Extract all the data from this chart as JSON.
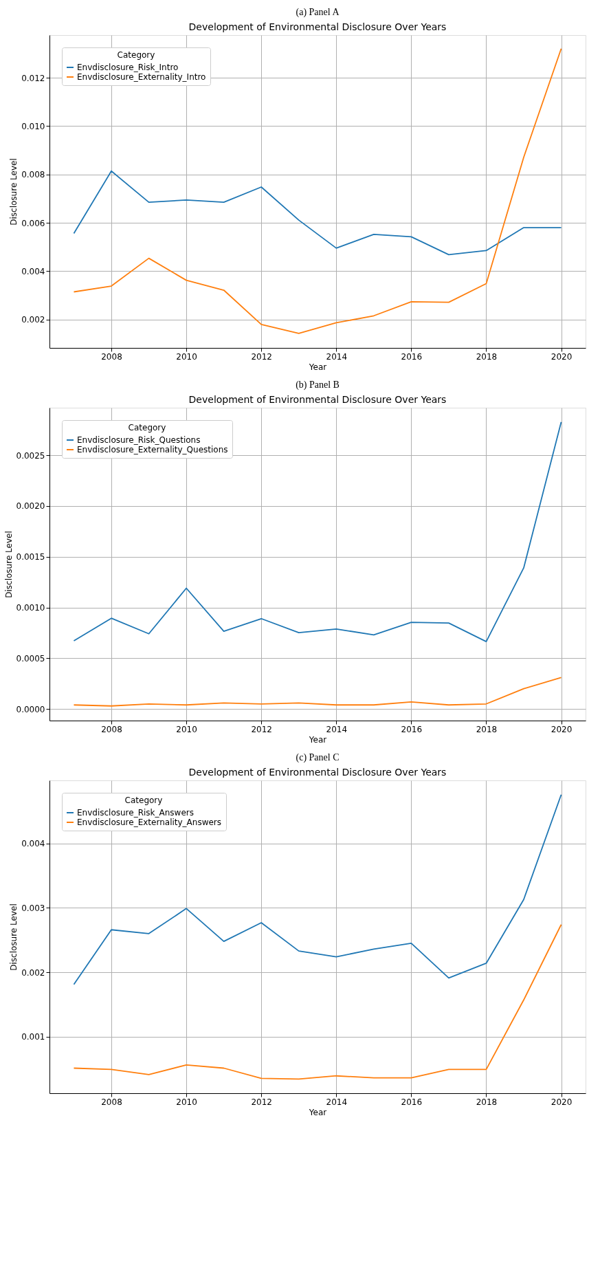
{
  "chart_data": [
    {
      "type": "line",
      "annotations": [
        "(a) Panel A"
      ],
      "title": "Development of Environmental Disclosure Over Years",
      "xlabel": "Year",
      "ylabel": "Disclosure Level",
      "legend_title": "Category",
      "legend": "top left",
      "grid": true,
      "x": [
        2007,
        2008,
        2009,
        2010,
        2011,
        2012,
        2013,
        2014,
        2015,
        2016,
        2017,
        2018,
        2019,
        2020
      ],
      "xlim": [
        2006.35,
        2020.65
      ],
      "xticks": [
        2008,
        2010,
        2012,
        2014,
        2016,
        2018,
        2020
      ],
      "ylim": [
        0.00082,
        0.01377
      ],
      "yticks": [
        0.002,
        0.004,
        0.006,
        0.008,
        {
          "value": 0.01,
          "label": "0.010"
        },
        0.012
      ],
      "series": [
        {
          "name": "Envdisclosure_Risk_Intro",
          "color": "#1f77b4",
          "values": [
            0.00556,
            0.00814,
            0.00685,
            0.00694,
            0.00685,
            0.00748,
            0.00611,
            0.00495,
            0.00552,
            0.00542,
            0.00468,
            0.00485,
            0.0058,
            0.0058
          ]
        },
        {
          "name": "Envdisclosure_Externality_Intro",
          "color": "#ff7f0e",
          "values": [
            0.00314,
            0.00338,
            0.00453,
            0.00362,
            0.00321,
            0.00179,
            0.00142,
            0.00186,
            0.00215,
            0.00273,
            0.00271,
            0.00348,
            0.00871,
            0.01321
          ]
        }
      ]
    },
    {
      "type": "line",
      "annotations": [
        "(b) Panel B"
      ],
      "title": "Development of Environmental Disclosure Over Years",
      "xlabel": "Year",
      "ylabel": "Disclosure Level",
      "legend_title": "Category",
      "legend": "top left",
      "grid": true,
      "x": [
        2007,
        2008,
        2009,
        2010,
        2011,
        2012,
        2013,
        2014,
        2015,
        2016,
        2017,
        2018,
        2019,
        2020
      ],
      "xlim": [
        2006.35,
        2020.65
      ],
      "xticks": [
        2008,
        2010,
        2012,
        2014,
        2016,
        2018,
        2020
      ],
      "ylim": [
        -0.000114,
        0.002968
      ],
      "yticks": [
        {
          "value": 0,
          "label": "0.0000"
        },
        0.0005,
        {
          "value": 0.001,
          "label": "0.0010"
        },
        0.0015,
        {
          "value": 0.002,
          "label": "0.0020"
        },
        0.0025
      ],
      "series": [
        {
          "name": "Envdisclosure_Risk_Questions",
          "color": "#1f77b4",
          "values": [
            0.000672,
            0.000894,
            0.000741,
            0.00119,
            0.000766,
            0.00089,
            0.000752,
            0.000788,
            0.00073,
            0.000854,
            0.000847,
            0.000664,
            0.00139,
            0.002828
          ]
        },
        {
          "name": "Envdisclosure_Externality_Questions",
          "color": "#ff7f0e",
          "values": [
            4e-05,
            3e-05,
            5e-05,
            4e-05,
            6e-05,
            5e-05,
            6e-05,
            4e-05,
            4e-05,
            7e-05,
            4e-05,
            5e-05,
            0.0002,
            0.00031
          ]
        }
      ]
    },
    {
      "type": "line",
      "annotations": [
        "(c) Panel C"
      ],
      "title": "Development of Environmental Disclosure Over Years",
      "xlabel": "Year",
      "ylabel": "Disclosure Level",
      "legend_title": "Category",
      "legend": "top left",
      "grid": true,
      "x": [
        2007,
        2008,
        2009,
        2010,
        2011,
        2012,
        2013,
        2014,
        2015,
        2016,
        2017,
        2018,
        2019,
        2020
      ],
      "xlim": [
        2006.35,
        2020.65
      ],
      "xticks": [
        2008,
        2010,
        2012,
        2014,
        2016,
        2018,
        2020
      ],
      "ylim": [
        0.00012,
        0.004981
      ],
      "yticks": [
        0.001,
        0.002,
        0.003,
        0.004
      ],
      "series": [
        {
          "name": "Envdisclosure_Risk_Answers",
          "color": "#1f77b4",
          "values": [
            0.00181,
            0.00266,
            0.0026,
            0.00299,
            0.00248,
            0.00277,
            0.00233,
            0.00224,
            0.00236,
            0.00245,
            0.00191,
            0.00214,
            0.00313,
            0.00476
          ]
        },
        {
          "name": "Envdisclosure_Externality_Answers",
          "color": "#ff7f0e",
          "values": [
            0.00051,
            0.00049,
            0.00041,
            0.00056,
            0.00051,
            0.00035,
            0.00034,
            0.00039,
            0.00036,
            0.00036,
            0.00049,
            0.00049,
            0.00157,
            0.00274
          ]
        }
      ]
    }
  ]
}
